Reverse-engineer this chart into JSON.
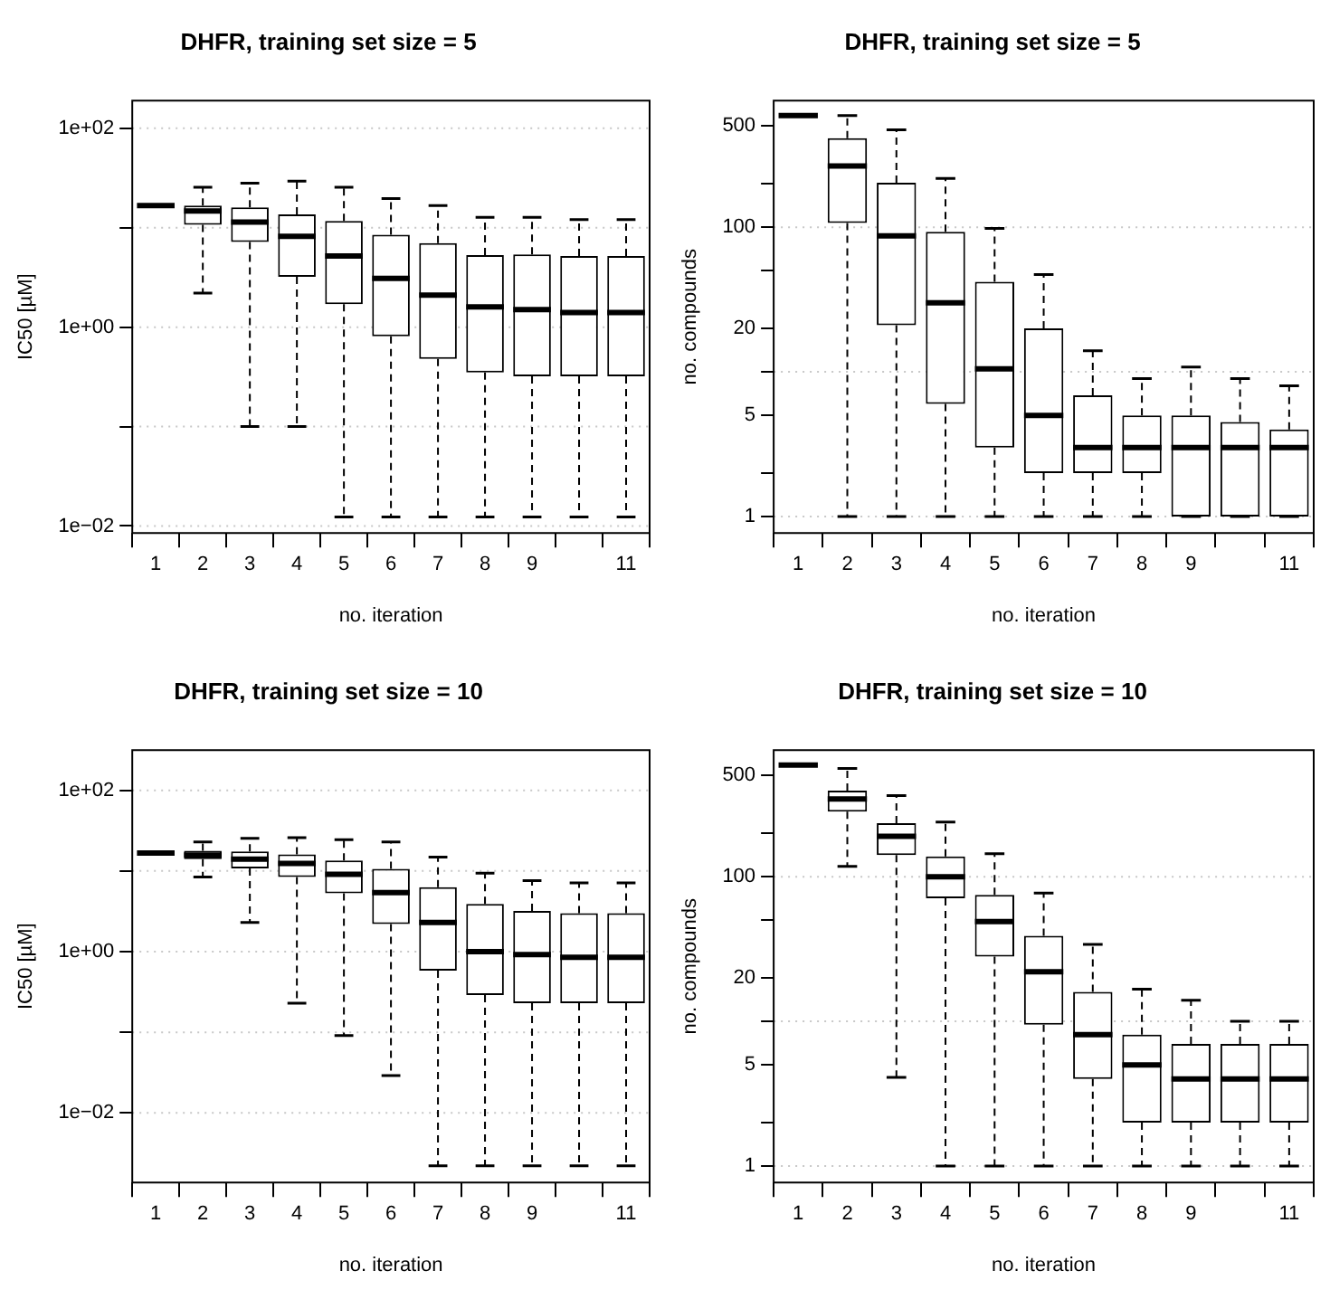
{
  "chart_data": [
    {
      "type": "box",
      "title": "DHFR, training set size = 5",
      "xlabel": "no. iteration",
      "ylabel": "IC50 [µM]",
      "log": "y",
      "grid": "y",
      "ylim": [
        0.0085,
        190
      ],
      "yticks": [
        {
          "value": 0.01,
          "label": "1e−02"
        },
        {
          "value": 0.1,
          "label": null
        },
        {
          "value": 1,
          "label": "1e+00"
        },
        {
          "value": 10,
          "label": null
        },
        {
          "value": 100,
          "label": "1e+02"
        }
      ],
      "categories": [
        "1",
        "2",
        "3",
        "4",
        "5",
        "6",
        "7",
        "8",
        "9",
        null,
        "11"
      ],
      "boxes": [
        {
          "low": 16.7,
          "q1": 16.7,
          "median": 16.7,
          "q3": 16.7,
          "high": 16.7
        },
        {
          "low": 2.2,
          "q1": 10.7,
          "median": 14.7,
          "q3": 16.7,
          "high": 25.5
        },
        {
          "low": 0.1,
          "q1": 7.2,
          "median": 11.4,
          "q3": 16,
          "high": 28
        },
        {
          "low": 0.1,
          "q1": 3.2,
          "median": 8.2,
          "q3": 13.6,
          "high": 29.4
        },
        {
          "low": 0.0123,
          "q1": 1.7,
          "median": 5.2,
          "q3": 11.7,
          "high": 25.5
        },
        {
          "low": 0.0123,
          "q1": 0.81,
          "median": 3.1,
          "q3": 8.5,
          "high": 19.7
        },
        {
          "low": 0.0123,
          "q1": 0.48,
          "median": 2.1,
          "q3": 7,
          "high": 16.7
        },
        {
          "low": 0.0123,
          "q1": 0.35,
          "median": 1.6,
          "q3": 5.3,
          "high": 12.7
        },
        {
          "low": 0.0123,
          "q1": 0.32,
          "median": 1.5,
          "q3": 5.4,
          "high": 12.7
        },
        {
          "low": 0.0123,
          "q1": 0.32,
          "median": 1.4,
          "q3": 5.2,
          "high": 12.1
        },
        {
          "low": 0.0123,
          "q1": 0.32,
          "median": 1.4,
          "q3": 5.2,
          "high": 12.1
        }
      ]
    },
    {
      "type": "box",
      "title": "DHFR, training set size = 5",
      "xlabel": "no. iteration",
      "ylabel": "no. compounds",
      "log": "y",
      "grid": "y",
      "ylim": [
        0.77,
        750
      ],
      "yticks": [
        {
          "value": 1,
          "label": "1"
        },
        {
          "value": 2,
          "label": null
        },
        {
          "value": 5,
          "label": "5"
        },
        {
          "value": 10,
          "label": null
        },
        {
          "value": 20,
          "label": "20"
        },
        {
          "value": 50,
          "label": null
        },
        {
          "value": 100,
          "label": "100"
        },
        {
          "value": 200,
          "label": null
        },
        {
          "value": 500,
          "label": "500"
        }
      ],
      "categories": [
        "1",
        "2",
        "3",
        "4",
        "5",
        "6",
        "7",
        "8",
        "9",
        null,
        "11"
      ],
      "boxes": [
        {
          "low": 590,
          "q1": 590,
          "median": 590,
          "q3": 590,
          "high": 590
        },
        {
          "low": 1,
          "q1": 107,
          "median": 265,
          "q3": 412,
          "high": 590
        },
        {
          "low": 1,
          "q1": 21,
          "median": 87,
          "q3": 203,
          "high": 471
        },
        {
          "low": 1,
          "q1": 6,
          "median": 30,
          "q3": 93,
          "high": 217
        },
        {
          "low": 1,
          "q1": 3,
          "median": 10.5,
          "q3": 42,
          "high": 98
        },
        {
          "low": 1,
          "q1": 2,
          "median": 5,
          "q3": 20,
          "high": 47
        },
        {
          "low": 1,
          "q1": 2,
          "median": 3,
          "q3": 6.9,
          "high": 14
        },
        {
          "low": 1,
          "q1": 2,
          "median": 3,
          "q3": 5,
          "high": 9
        },
        {
          "low": 1,
          "q1": 1,
          "median": 3,
          "q3": 5,
          "high": 10.8
        },
        {
          "low": 1,
          "q1": 1,
          "median": 3,
          "q3": 4.5,
          "high": 9
        },
        {
          "low": 1,
          "q1": 1,
          "median": 3,
          "q3": 4,
          "high": 8
        }
      ]
    },
    {
      "type": "box",
      "title": "DHFR, training set size = 10",
      "xlabel": "no. iteration",
      "ylabel": "IC50 [µM]",
      "log": "y",
      "grid": "y",
      "ylim": [
        0.00137,
        316
      ],
      "yticks": [
        {
          "value": 0.01,
          "label": "1e−02"
        },
        {
          "value": 0.1,
          "label": null
        },
        {
          "value": 1,
          "label": "1e+00"
        },
        {
          "value": 10,
          "label": null
        },
        {
          "value": 100,
          "label": "1e+02"
        }
      ],
      "categories": [
        "1",
        "2",
        "3",
        "4",
        "5",
        "6",
        "7",
        "8",
        "9",
        null,
        "11"
      ],
      "boxes": [
        {
          "low": 16.7,
          "q1": 16.7,
          "median": 16.7,
          "q3": 16.7,
          "high": 16.7
        },
        {
          "low": 8.4,
          "q1": 14,
          "median": 15.8,
          "q3": 17.8,
          "high": 23
        },
        {
          "low": 2.3,
          "q1": 10.8,
          "median": 14,
          "q3": 17.5,
          "high": 25.4
        },
        {
          "low": 0.23,
          "q1": 8.4,
          "median": 12.4,
          "q3": 16.1,
          "high": 26
        },
        {
          "low": 0.091,
          "q1": 5.3,
          "median": 9.1,
          "q3": 13.5,
          "high": 24.4
        },
        {
          "low": 0.029,
          "q1": 2.2,
          "median": 5.4,
          "q3": 10.6,
          "high": 23
        },
        {
          "low": 0.0022,
          "q1": 0.58,
          "median": 2.3,
          "q3": 6.3,
          "high": 14.9
        },
        {
          "low": 0.0022,
          "q1": 0.29,
          "median": 1,
          "q3": 3.9,
          "high": 9.4
        },
        {
          "low": 0.0022,
          "q1": 0.23,
          "median": 0.92,
          "q3": 3.2,
          "high": 7.6
        },
        {
          "low": 0.0022,
          "q1": 0.23,
          "median": 0.85,
          "q3": 3,
          "high": 7.1
        },
        {
          "low": 0.0022,
          "q1": 0.23,
          "median": 0.85,
          "q3": 3,
          "high": 7.1
        }
      ]
    },
    {
      "type": "box",
      "title": "DHFR, training set size = 10",
      "xlabel": "no. iteration",
      "ylabel": "no. compounds",
      "log": "y",
      "grid": "y",
      "ylim": [
        0.77,
        750
      ],
      "yticks": [
        {
          "value": 1,
          "label": "1"
        },
        {
          "value": 2,
          "label": null
        },
        {
          "value": 5,
          "label": "5"
        },
        {
          "value": 10,
          "label": null
        },
        {
          "value": 20,
          "label": "20"
        },
        {
          "value": 50,
          "label": null
        },
        {
          "value": 100,
          "label": "100"
        },
        {
          "value": 200,
          "label": null
        },
        {
          "value": 500,
          "label": "500"
        }
      ],
      "categories": [
        "1",
        "2",
        "3",
        "4",
        "5",
        "6",
        "7",
        "8",
        "9",
        null,
        "11"
      ],
      "boxes": [
        {
          "low": 590,
          "q1": 590,
          "median": 590,
          "q3": 590,
          "high": 590
        },
        {
          "low": 118,
          "q1": 282,
          "median": 345,
          "q3": 393,
          "high": 560
        },
        {
          "low": 4.1,
          "q1": 141,
          "median": 190,
          "q3": 234,
          "high": 364
        },
        {
          "low": 1,
          "q1": 71,
          "median": 100,
          "q3": 138,
          "high": 239
        },
        {
          "low": 1,
          "q1": 28,
          "median": 49,
          "q3": 75,
          "high": 144
        },
        {
          "low": 1,
          "q1": 9.5,
          "median": 22,
          "q3": 39,
          "high": 77
        },
        {
          "low": 1,
          "q1": 4,
          "median": 8.1,
          "q3": 16,
          "high": 34
        },
        {
          "low": 1,
          "q1": 2,
          "median": 5,
          "q3": 8.1,
          "high": 16.7
        },
        {
          "low": 1,
          "q1": 2,
          "median": 4,
          "q3": 7,
          "high": 14
        },
        {
          "low": 1,
          "q1": 2,
          "median": 4,
          "q3": 7,
          "high": 10
        },
        {
          "low": 1,
          "q1": 2,
          "median": 4,
          "q3": 7,
          "high": 10
        }
      ]
    }
  ]
}
